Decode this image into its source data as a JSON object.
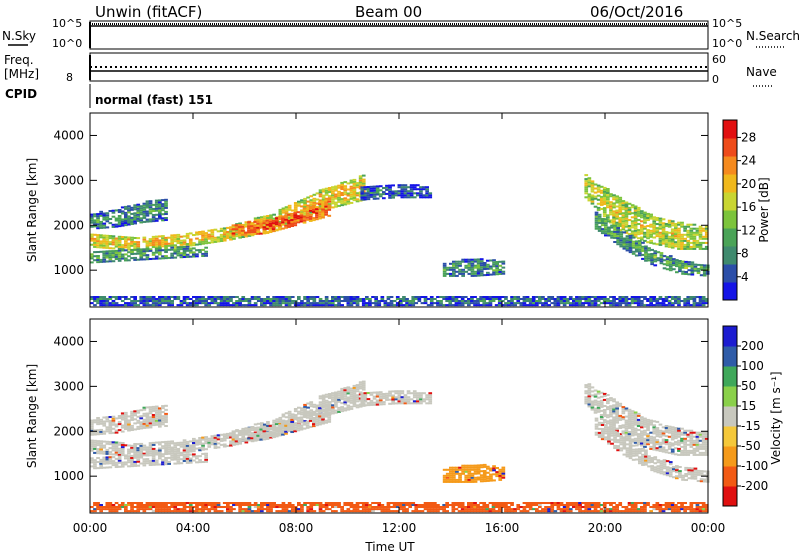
{
  "header": {
    "station": "Unwin (fitACF)",
    "beam": "Beam 00",
    "date": "06/Oct/2016"
  },
  "status_panels": {
    "nsky_label": "N.Sky",
    "nsky_ticks": [
      "10^5",
      "10^0"
    ],
    "nsearch_label": "N.Search",
    "nsearch_ticks": [
      "10^5",
      "10^0"
    ],
    "freq_label": "Freq.",
    "freq_unit": "[MHz]",
    "freq_ticks": [
      "8"
    ],
    "nave_label": "Nave",
    "nave_ticks": [
      "60",
      "0"
    ],
    "cpid_label": "CPID",
    "cpid_value": "normal (fast) 151"
  },
  "colors": {
    "power": [
      "#1414e6",
      "#2b4ea8",
      "#3f8a6e",
      "#4aa357",
      "#7cc43c",
      "#c9d531",
      "#f0b81c",
      "#f58a1e",
      "#ee4b1a",
      "#e10f10"
    ],
    "velocity": [
      "#e01010",
      "#f25a14",
      "#f59a1a",
      "#f5c83a",
      "#c8c8be",
      "#8ad04a",
      "#3fa85a",
      "#2f5ca8",
      "#1c1cd0"
    ]
  },
  "chart_data": [
    {
      "type": "heatmap",
      "ylabel": "Slant Range [km]",
      "x_ticks": [
        "00:00",
        "04:00",
        "08:00",
        "12:00",
        "16:00",
        "20:00",
        "00:00"
      ],
      "y_ticks": [
        "1000",
        "2000",
        "3000",
        "4000"
      ],
      "ylim": [
        180,
        4500
      ],
      "colorbar_label": "Power [dB]",
      "colorbar_ticks": [
        "4",
        "8",
        "12",
        "16",
        "20",
        "24",
        "28"
      ],
      "zlim": [
        0,
        31
      ],
      "bands": [
        {
          "t0": 0.0,
          "t1": 10.6,
          "r0": [
            1500,
            1420,
            1500,
            1650,
            1850,
            2300,
            2550
          ],
          "r1": [
            1800,
            1700,
            1780,
            1950,
            2250,
            2750,
            3100
          ],
          "z": 20
        },
        {
          "t0": 0.0,
          "t1": 3.0,
          "r0": [
            1900,
            1950,
            2050,
            2100
          ],
          "r1": [
            2250,
            2350,
            2500,
            2600
          ],
          "z": 9
        },
        {
          "t0": 0.0,
          "t1": 4.5,
          "r0": [
            1150,
            1200,
            1250,
            1300
          ],
          "r1": [
            1400,
            1450,
            1500,
            1500
          ],
          "z": 11
        },
        {
          "t0": 5.5,
          "t1": 9.3,
          "r0": [
            1750,
            1800,
            2000,
            2200
          ],
          "r1": [
            2000,
            2100,
            2300,
            2600
          ],
          "z": 27
        },
        {
          "t0": 10.5,
          "t1": 13.2,
          "r0": [
            2550,
            2600,
            2600
          ],
          "r1": [
            2850,
            2900,
            2850
          ],
          "z": 7
        },
        {
          "t0": 13.7,
          "t1": 16.0,
          "r0": [
            850,
            850,
            900
          ],
          "r1": [
            1150,
            1250,
            1200
          ],
          "z": 10
        },
        {
          "t0": 19.2,
          "t1": 24.0,
          "r0": [
            2600,
            1900,
            1600,
            1450,
            1450
          ],
          "r1": [
            3100,
            2650,
            2250,
            2050,
            1950
          ],
          "z": 18
        },
        {
          "t0": 19.6,
          "t1": 24.0,
          "r0": [
            1900,
            1450,
            1100,
            900,
            850
          ],
          "r1": [
            2300,
            1850,
            1450,
            1200,
            1100
          ],
          "z": 11
        },
        {
          "t0": 0.0,
          "t1": 24.0,
          "r0": [
            200
          ],
          "r1": [
            400
          ],
          "z": 7
        }
      ]
    },
    {
      "type": "heatmap",
      "ylabel": "Slant Range [km]",
      "xlabel": "Time UT",
      "x_ticks": [
        "00:00",
        "04:00",
        "08:00",
        "12:00",
        "16:00",
        "20:00",
        "00:00"
      ],
      "y_ticks": [
        "1000",
        "2000",
        "3000",
        "4000"
      ],
      "ylim": [
        180,
        4500
      ],
      "colorbar_label": "Velocity [m s⁻¹]",
      "colorbar_ticks": [
        "-200",
        "-100",
        "-50",
        "-15",
        "15",
        "50",
        "100",
        "200"
      ],
      "zlim": [
        -250,
        250
      ],
      "bands": [
        {
          "t0": 0.0,
          "t1": 10.6,
          "r0": [
            1500,
            1420,
            1500,
            1650,
            1850,
            2300,
            2550
          ],
          "r1": [
            1800,
            1700,
            1780,
            1950,
            2250,
            2750,
            3100
          ],
          "z": 0
        },
        {
          "t0": 0.0,
          "t1": 3.0,
          "r0": [
            1900,
            1950,
            2050,
            2100
          ],
          "r1": [
            2250,
            2350,
            2500,
            2600
          ],
          "z": 0
        },
        {
          "t0": 0.0,
          "t1": 4.5,
          "r0": [
            1150,
            1200,
            1250,
            1300
          ],
          "r1": [
            1400,
            1450,
            1500,
            1500
          ],
          "z": 0
        },
        {
          "t0": 5.5,
          "t1": 9.3,
          "r0": [
            1750,
            1800,
            2000,
            2200
          ],
          "r1": [
            2000,
            2100,
            2300,
            2600
          ],
          "z": -5
        },
        {
          "t0": 10.5,
          "t1": 13.2,
          "r0": [
            2550,
            2600,
            2600
          ],
          "r1": [
            2850,
            2900,
            2850
          ],
          "z": 0
        },
        {
          "t0": 13.7,
          "t1": 16.0,
          "r0": [
            850,
            850,
            900
          ],
          "r1": [
            1150,
            1250,
            1200
          ],
          "z": -40
        },
        {
          "t0": 19.2,
          "t1": 24.0,
          "r0": [
            2600,
            1900,
            1600,
            1450,
            1450
          ],
          "r1": [
            3100,
            2650,
            2250,
            2050,
            1950
          ],
          "z": 5
        },
        {
          "t0": 19.6,
          "t1": 24.0,
          "r0": [
            1900,
            1450,
            1100,
            900,
            850
          ],
          "r1": [
            2300,
            1850,
            1450,
            1200,
            1100
          ],
          "z": 0
        },
        {
          "t0": 0.0,
          "t1": 24.0,
          "r0": [
            200
          ],
          "r1": [
            400
          ],
          "z": -60
        }
      ]
    }
  ]
}
